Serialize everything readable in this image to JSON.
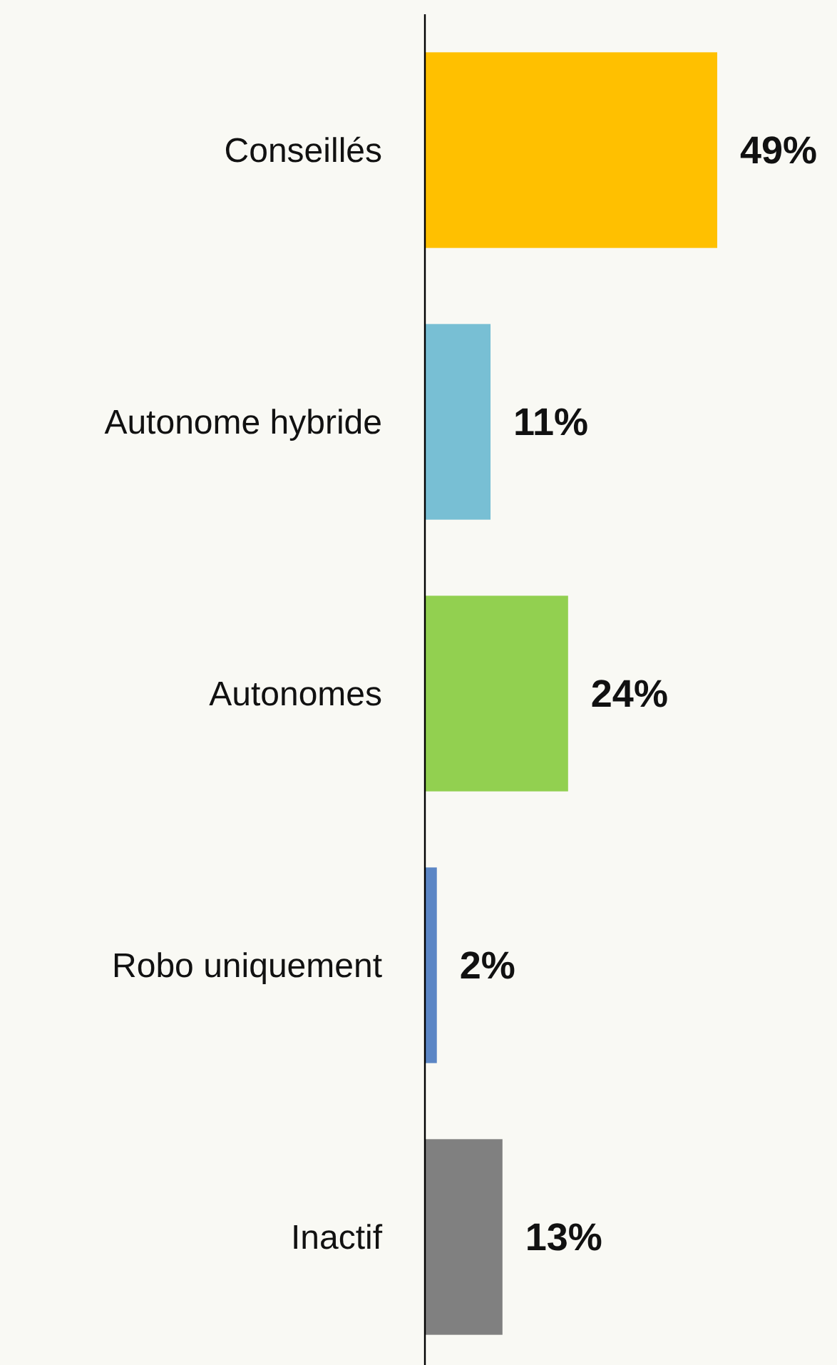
{
  "chart_data": {
    "type": "bar",
    "orientation": "horizontal",
    "categories": [
      "Conseillés",
      "Autonome hybride",
      "Autonomes",
      "Robo uniquement",
      "Inactif"
    ],
    "values": [
      49,
      11,
      24,
      2,
      13
    ],
    "colors": [
      "#ffc000",
      "#78bfd4",
      "#92d050",
      "#5b86c5",
      "#808080"
    ],
    "value_labels": [
      "49%",
      "11%",
      "24%",
      "2%",
      "13%"
    ]
  }
}
